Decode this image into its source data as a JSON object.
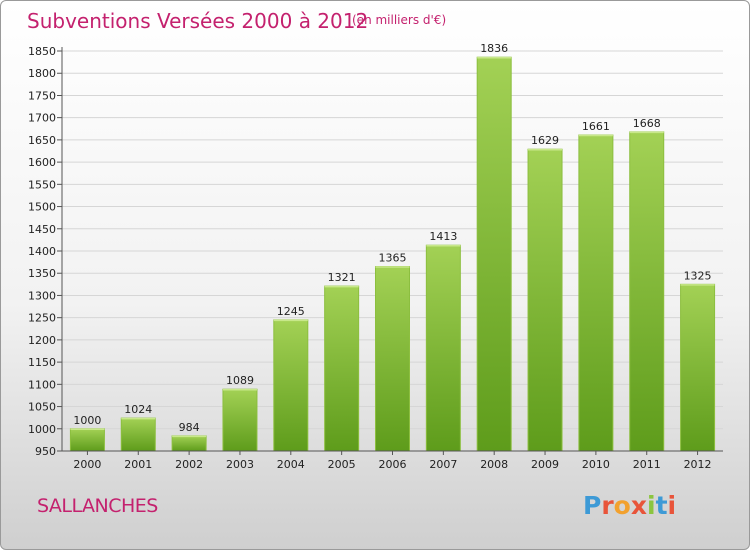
{
  "header": {
    "title": "Subventions Versées 2000 à 2012",
    "subtitle": "(en milliers d'€)"
  },
  "commune": "SALLANCHES",
  "logo": {
    "text": "Proxiti",
    "colors": [
      "#3d9ad6",
      "#e8543a",
      "#f2a12e",
      "#e8543a",
      "#8bc53f",
      "#3d9ad6",
      "#e8543a"
    ]
  },
  "colors": {
    "bar_top": "#a3d155",
    "bar_bottom": "#5e9c1b",
    "accent": "#c4216e"
  },
  "chart_data": {
    "type": "bar",
    "title": "Subventions Versées 2000 à 2012",
    "subtitle": "(en milliers d'€)",
    "categories": [
      "2000",
      "2001",
      "2002",
      "2003",
      "2004",
      "2005",
      "2006",
      "2007",
      "2008",
      "2009",
      "2010",
      "2011",
      "2012"
    ],
    "values": [
      1000,
      1024,
      984,
      1089,
      1245,
      1321,
      1365,
      1413,
      1836,
      1629,
      1661,
      1668,
      1325
    ],
    "ylim": [
      950,
      1850
    ],
    "yticks": [
      950,
      1000,
      1050,
      1100,
      1150,
      1200,
      1250,
      1300,
      1350,
      1400,
      1450,
      1500,
      1550,
      1600,
      1650,
      1700,
      1750,
      1800,
      1850
    ],
    "grid": true,
    "legend": "none"
  }
}
